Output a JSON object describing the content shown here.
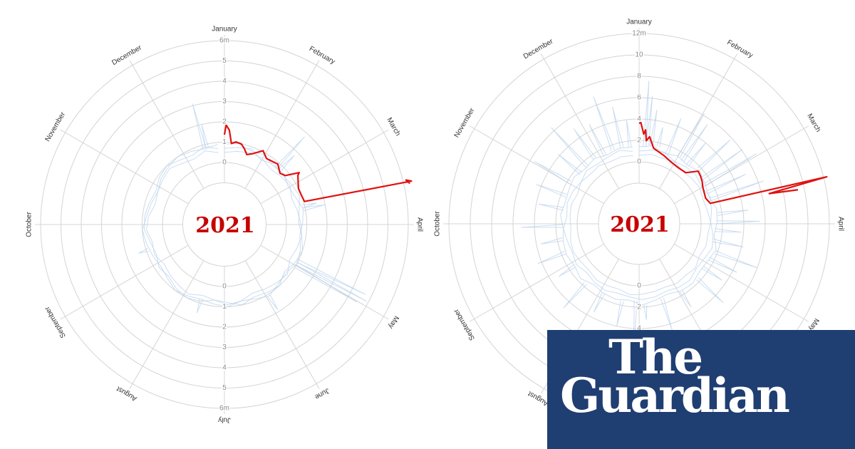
{
  "chart_data": [
    {
      "type": "radial-line",
      "center_label": "2021",
      "months": [
        "January",
        "February",
        "March",
        "April",
        "May",
        "June",
        "July",
        "August",
        "September",
        "October",
        "November",
        "December"
      ],
      "r_ticks": [
        "0",
        "1",
        "2",
        "3",
        "4",
        "5",
        "6m"
      ],
      "r_tick_values": [
        0,
        1,
        2,
        3,
        4,
        5,
        6
      ],
      "rlim": [
        -1,
        6
      ],
      "grid": true,
      "colors": {
        "highlight": "#e0110f",
        "background_years": "#b9d1ec",
        "grid": "#d4d4d4",
        "center_label": "#c70000"
      },
      "highlight_series": {
        "name": "2021",
        "points": [
          [
            0,
            1.37
          ],
          [
            1,
            1.85
          ],
          [
            3,
            1.6
          ],
          [
            5,
            0.95
          ],
          [
            8,
            1.05
          ],
          [
            12,
            1.0
          ],
          [
            15,
            0.8
          ],
          [
            18,
            0.56
          ],
          [
            22,
            0.7
          ],
          [
            28,
            1.05
          ],
          [
            33,
            0.8
          ],
          [
            38,
            0.85
          ],
          [
            42,
            0.92
          ],
          [
            48,
            0.67
          ],
          [
            52,
            0.8
          ],
          [
            56,
            1.43
          ],
          [
            57,
            1.3
          ],
          [
            60,
            1.17
          ],
          [
            65,
            1.0
          ],
          [
            70,
            1.0
          ],
          [
            75,
            1.05
          ],
          [
            78,
            6.4
          ],
          [
            77.3,
            6.15
          ],
          [
            78.6,
            6.3
          ]
        ]
      },
      "background_series_step_days": 10,
      "background_series": [
        [
          0.9,
          1.0,
          0.8,
          0.9,
          0.7,
          0.8,
          0.6,
          0.7,
          0.9,
          0.8,
          0.7,
          0.9,
          1.0,
          0.8,
          0.9,
          1.1,
          0.9,
          0.8,
          1.0,
          0.9,
          0.8,
          0.9,
          1.0,
          0.8,
          0.7,
          0.8,
          0.9,
          1.0,
          0.8,
          0.7,
          0.6,
          0.8,
          0.9,
          1.0,
          0.9,
          0.8,
          0.9
        ],
        [
          0.7,
          0.8,
          0.9,
          0.6,
          0.8,
          0.7,
          0.8,
          0.9,
          0.7,
          0.6,
          0.8,
          1.0,
          0.9,
          0.7,
          1.0,
          0.9,
          0.8,
          1.0,
          0.8,
          0.7,
          0.9,
          1.0,
          0.9,
          0.7,
          0.8,
          0.6,
          0.7,
          0.9,
          0.9,
          0.8,
          0.7,
          0.9,
          1.0,
          0.8,
          0.7,
          0.9,
          0.7
        ],
        [
          0.5,
          0.6,
          0.7,
          0.7,
          0.5,
          0.6,
          0.7,
          0.5,
          0.6,
          0.7,
          0.8,
          0.7,
          0.6,
          0.9,
          0.8,
          0.7,
          0.6,
          0.8,
          0.9,
          0.7,
          0.6,
          0.8,
          0.7,
          0.6,
          0.5,
          0.7,
          0.6,
          0.8,
          0.7,
          0.5,
          0.6,
          0.7,
          0.8,
          0.6,
          0.5,
          0.7,
          0.5
        ]
      ],
      "background_spikes": [
        [
          43,
          2.8
        ],
        [
          46,
          1.8
        ],
        [
          78,
          1.6
        ],
        [
          80,
          2.0
        ],
        [
          118,
          4.7
        ],
        [
          120,
          4.9
        ],
        [
          122,
          4.5
        ],
        [
          150,
          1.9
        ],
        [
          200,
          1.5
        ],
        [
          255,
          1.4
        ],
        [
          350,
          3.1
        ],
        [
          352,
          2.0
        ]
      ]
    },
    {
      "type": "radial-line",
      "center_label": "2021",
      "months": [
        "January",
        "February",
        "March",
        "April",
        "May",
        "June",
        "July",
        "August",
        "September",
        "October",
        "November",
        "December"
      ],
      "r_ticks": [
        "0",
        "2",
        "4",
        "6",
        "8",
        "10",
        "12m"
      ],
      "r_tick_values": [
        0,
        2,
        4,
        6,
        8,
        10,
        12
      ],
      "rlim": [
        -2,
        12
      ],
      "grid": true,
      "colors": {
        "highlight": "#e0110f",
        "background_years": "#b9d1ec",
        "grid": "#d4d4d4",
        "center_label": "#c70000"
      },
      "highlight_series": {
        "name": "2021",
        "points": [
          [
            0,
            3.6
          ],
          [
            1,
            3.67
          ],
          [
            3,
            2.6
          ],
          [
            4,
            3.0
          ],
          [
            5,
            2.0
          ],
          [
            7,
            2.4
          ],
          [
            11,
            1.4
          ],
          [
            20,
            1.0
          ],
          [
            28,
            0.7
          ],
          [
            36,
            0.6
          ],
          [
            43,
            0.67
          ],
          [
            49,
            1.6
          ],
          [
            53,
            1.47
          ],
          [
            57,
            1.3
          ],
          [
            61,
            1.07
          ],
          [
            70,
            0.87
          ],
          [
            75,
            1.13
          ],
          [
            77,
            12.3
          ],
          [
            78,
            6.7
          ],
          [
            79,
            9.4
          ]
        ]
      },
      "background_series_step_days": 10,
      "background_series": [
        [
          1.4,
          1.6,
          1.2,
          1.5,
          1.3,
          1.7,
          1.4,
          1.2,
          1.6,
          1.5,
          1.3,
          1.8,
          1.5,
          1.4,
          1.7,
          1.6,
          1.3,
          1.5,
          1.8,
          1.4,
          1.6,
          1.5,
          1.3,
          1.7,
          1.4,
          1.6,
          1.5,
          1.3,
          1.6,
          1.4,
          1.5,
          1.7,
          1.4,
          1.6,
          1.3,
          1.5,
          1.4
        ],
        [
          1.0,
          1.2,
          1.3,
          0.9,
          1.1,
          1.2,
          1.0,
          1.3,
          1.1,
          0.9,
          1.2,
          1.4,
          1.1,
          1.0,
          1.3,
          1.2,
          1.0,
          1.2,
          1.3,
          1.1,
          1.0,
          1.2,
          1.1,
          0.9,
          1.2,
          1.0,
          1.1,
          1.3,
          1.0,
          1.2,
          1.1,
          0.9,
          1.2,
          1.0,
          1.1,
          1.3,
          1.0
        ],
        [
          0.6,
          0.8,
          0.7,
          0.9,
          0.6,
          0.7,
          0.8,
          0.6,
          0.7,
          0.9,
          0.7,
          0.8,
          0.6,
          0.9,
          0.7,
          0.8,
          0.6,
          0.7,
          0.8,
          0.9,
          0.6,
          0.7,
          0.8,
          0.6,
          0.7,
          0.9,
          0.8,
          0.6,
          0.7,
          0.8,
          0.6,
          0.9,
          0.7,
          0.8,
          0.6,
          0.7,
          0.6
        ]
      ],
      "background_spikes": [
        [
          4,
          7.6
        ],
        [
          6,
          6.2
        ],
        [
          9,
          5.0
        ],
        [
          14,
          3.5
        ],
        [
          22,
          4.8
        ],
        [
          31,
          6.2
        ],
        [
          35,
          5.5
        ],
        [
          40,
          4.0
        ],
        [
          48,
          5.8
        ],
        [
          55,
          6.1
        ],
        [
          60,
          7.0
        ],
        [
          66,
          5.2
        ],
        [
          72,
          6.5
        ],
        [
          84,
          4.5
        ],
        [
          90,
          5.5
        ],
        [
          96,
          3.8
        ],
        [
          104,
          4.2
        ],
        [
          112,
          6.0
        ],
        [
          118,
          4.4
        ],
        [
          126,
          3.6
        ],
        [
          135,
          5.0
        ],
        [
          150,
          3.4
        ],
        [
          165,
          4.6
        ],
        [
          178,
          3.2
        ],
        [
          185,
          5.8
        ],
        [
          195,
          4.0
        ],
        [
          210,
          3.5
        ],
        [
          225,
          4.8
        ],
        [
          240,
          3.2
        ],
        [
          252,
          4.4
        ],
        [
          262,
          3.6
        ],
        [
          272,
          5.2
        ],
        [
          285,
          3.8
        ],
        [
          295,
          4.5
        ],
        [
          305,
          5.6
        ],
        [
          315,
          4.2
        ],
        [
          322,
          6.4
        ],
        [
          330,
          5.0
        ],
        [
          338,
          4.6
        ],
        [
          345,
          6.8
        ],
        [
          352,
          5.4
        ],
        [
          358,
          4.0
        ]
      ]
    }
  ],
  "branding": {
    "logo_line1": "The",
    "logo_line2": "Guardian",
    "logo_background": "#1f3e72"
  }
}
